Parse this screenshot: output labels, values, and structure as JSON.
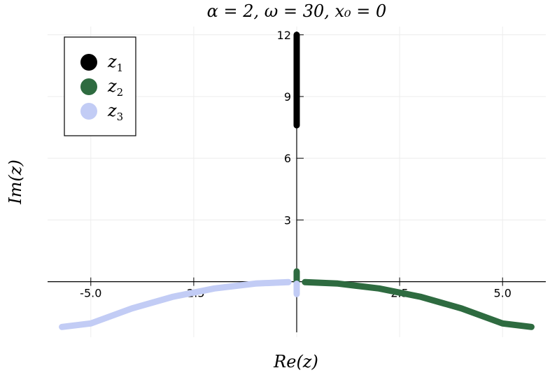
{
  "chart_data": {
    "type": "scatter",
    "title": "α = 2, ω = 30, x₀ = 0",
    "xlabel": "Re(z)",
    "ylabel": "Im(z)",
    "xlim": [
      -6.05,
      6.05
    ],
    "ylim": [
      -2.7,
      12.4
    ],
    "x_ticks": [
      -5.0,
      -2.5,
      2.5,
      5.0
    ],
    "x_tick_labels": [
      "-5.0",
      "-2.5",
      "2.5",
      "5.0"
    ],
    "y_ticks": [
      3,
      6,
      9,
      12
    ],
    "y_tick_labels": [
      "3",
      "6",
      "9",
      "12"
    ],
    "grid": true,
    "legend_position": "top-left",
    "series": [
      {
        "name": "z1",
        "label_base": "z",
        "label_sub": "1",
        "color": "#000000",
        "segments": [
          {
            "points": [
              [
                0.0,
                7.6
              ],
              [
                0.0,
                12.0
              ]
            ]
          }
        ]
      },
      {
        "name": "z2",
        "label_base": "z",
        "label_sub": "2",
        "color": "#2e6b40",
        "segments": [
          {
            "points": [
              [
                0.0,
                0.0
              ],
              [
                0.0,
                0.5
              ]
            ]
          },
          {
            "points": [
              [
                0.2,
                -0.02
              ],
              [
                1.0,
                -0.09
              ],
              [
                2.0,
                -0.33
              ],
              [
                3.0,
                -0.73
              ],
              [
                4.0,
                -1.3
              ],
              [
                5.0,
                -2.03
              ],
              [
                5.7,
                -2.2
              ]
            ]
          }
        ]
      },
      {
        "name": "z3",
        "label_base": "z",
        "label_sub": "3",
        "color": "#c2ccf5",
        "segments": [
          {
            "points": [
              [
                0.0,
                -0.6
              ],
              [
                0.0,
                -0.1
              ]
            ]
          },
          {
            "points": [
              [
                -0.2,
                -0.02
              ],
              [
                -1.0,
                -0.09
              ],
              [
                -2.0,
                -0.33
              ],
              [
                -3.0,
                -0.73
              ],
              [
                -4.0,
                -1.3
              ],
              [
                -5.0,
                -2.03
              ],
              [
                -5.7,
                -2.2
              ]
            ]
          }
        ]
      }
    ]
  }
}
